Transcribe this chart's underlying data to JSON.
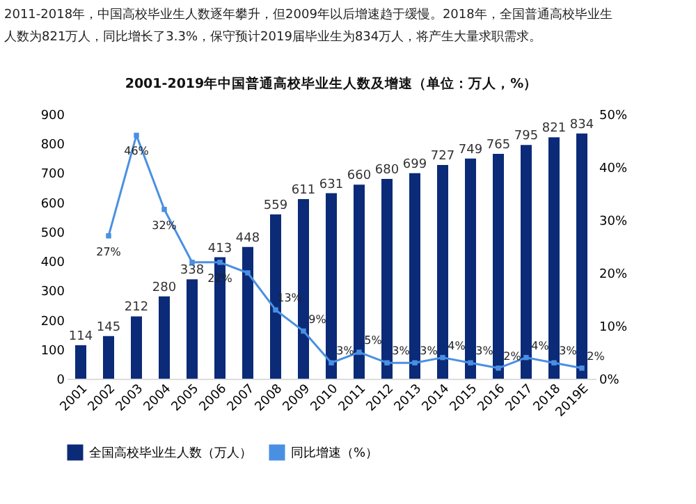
{
  "chart_data": {
    "type": "bar",
    "title": "2001-2019年中国普通高校毕业生人数及增速（单位：万人，%）",
    "annotations": [
      "2011-2018年，中国高校毕业生人数逐年攀升，但2009年以后增速趋于缓慢。2018年，全国普通高校毕业生",
      "人数为821万人，同比增长了3.3%，保守预计2019届毕业生为834万人，将产生大量求职需求。"
    ],
    "categories": [
      "2001",
      "2002",
      "2003",
      "2004",
      "2005",
      "2006",
      "2007",
      "2008",
      "2009",
      "2010",
      "2011",
      "2012",
      "2013",
      "2014",
      "2015",
      "2016",
      "2017",
      "2018",
      "2019E"
    ],
    "series": [
      {
        "name": "全国高校毕业生人数（万人）",
        "type": "bar",
        "color": "#0b2a78",
        "values": [
          114,
          145,
          212,
          280,
          338,
          413,
          448,
          559,
          611,
          631,
          660,
          680,
          699,
          727,
          749,
          765,
          795,
          821,
          834
        ]
      },
      {
        "name": "同比增速（%）",
        "type": "line",
        "axis": "y2",
        "color": "#4a90e2",
        "marker": "square",
        "values": [
          null,
          27,
          46,
          32,
          22,
          22,
          20,
          13,
          9,
          3,
          5,
          3,
          3,
          4,
          3,
          2,
          4,
          3,
          2
        ],
        "value_labels": [
          null,
          "27%",
          "46%",
          "32%",
          null,
          "22%",
          null,
          "13%",
          "9%",
          "3%",
          "5%",
          "3%",
          "3%",
          "4%",
          "3%",
          "2%",
          "4%",
          "3%",
          "2%"
        ]
      }
    ],
    "data_labels": true,
    "ylim": [
      0,
      900
    ],
    "yticks": [
      0,
      100,
      200,
      300,
      400,
      500,
      600,
      700,
      800,
      900
    ],
    "y2lim": [
      0,
      50
    ],
    "y2ticks": [
      {
        "value": 0,
        "label": "0%"
      },
      {
        "value": 10,
        "label": "10%"
      },
      {
        "value": 20,
        "label": "20%"
      },
      {
        "value": 30,
        "label": "30%"
      },
      {
        "value": 40,
        "label": "40%"
      },
      {
        "value": 50,
        "label": "50%"
      }
    ],
    "grid": false,
    "legend": "bottom"
  }
}
